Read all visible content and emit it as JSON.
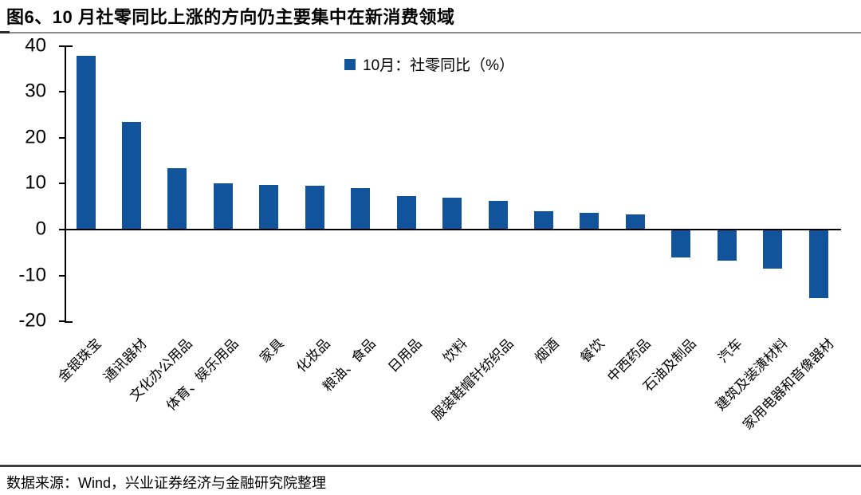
{
  "title": "图6、10 月社零同比上涨的方向仍主要集中在新消费领域",
  "legend": {
    "label": "10月：社零同比（%）"
  },
  "source": "数据来源：Wind，兴业证券经济与金融研究院整理",
  "colors": {
    "bar": "#12549B",
    "axis": "#000000",
    "title_rule": "#8c8c8c",
    "source_rule": "#3f3f3f"
  },
  "chart_data": {
    "type": "bar",
    "title": "10月：社零同比（%）",
    "categories": [
      "金银珠宝",
      "通讯器材",
      "文化办公用品",
      "体育、娱乐用品",
      "家具",
      "化妆品",
      "粮油、食品",
      "日用品",
      "饮料",
      "服装鞋帽针纺织品",
      "烟酒",
      "餐饮",
      "中西药品",
      "石油及制品",
      "汽车",
      "建筑及装潢材料",
      "家用电器和音像器材"
    ],
    "values": [
      37.9,
      23.4,
      13.4,
      10.1,
      9.7,
      9.6,
      9.0,
      7.3,
      7.0,
      6.3,
      4.0,
      3.7,
      3.3,
      -6.0,
      -6.8,
      -8.5,
      -15.0
    ],
    "xlabel": "",
    "ylabel": "",
    "ylim": [
      -20,
      40
    ],
    "yticks": [
      40,
      30,
      20,
      10,
      0,
      -10,
      -20
    ],
    "grid": false,
    "legend_position": "top-center",
    "bar_color": "#12549B"
  }
}
